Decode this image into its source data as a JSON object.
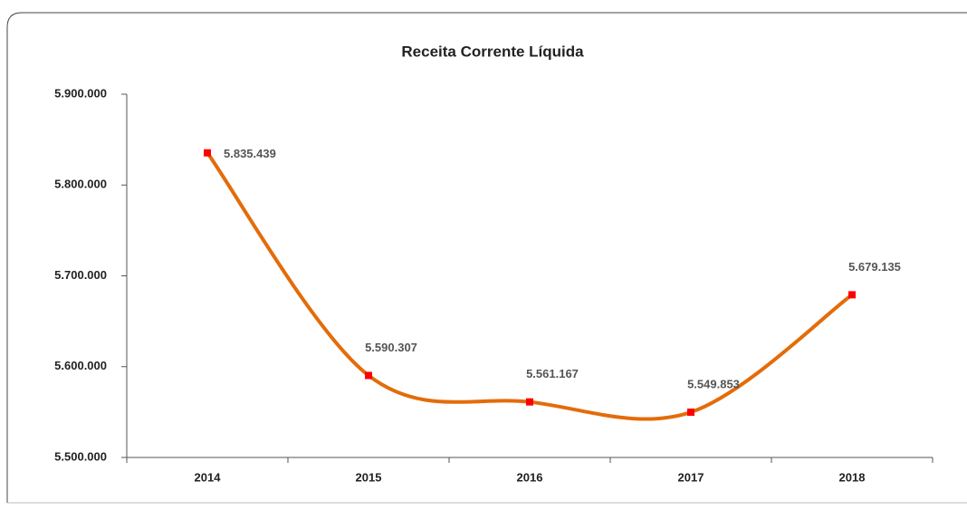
{
  "chart_data": {
    "type": "line",
    "title": "Receita Corrente Líquida",
    "categories": [
      "2014",
      "2015",
      "2016",
      "2017",
      "2018"
    ],
    "series": [
      {
        "name": "Receita Corrente Líquida",
        "color": "#e36c0a",
        "marker_color": "#ff0000",
        "values": [
          5835439,
          5590307,
          5561167,
          5549853,
          5679135
        ],
        "value_labels": [
          "5.835.439",
          "5.590.307",
          "5.561.167",
          "5.549.853",
          "5.679.135"
        ]
      }
    ],
    "ylim": [
      5500000,
      5900000
    ],
    "yticks": [
      {
        "value": 5500000,
        "label": "5.500.000"
      },
      {
        "value": 5600000,
        "label": "5.600.000"
      },
      {
        "value": 5700000,
        "label": "5.700.000"
      },
      {
        "value": 5800000,
        "label": "5.800.000"
      },
      {
        "value": 5900000,
        "label": "5.900.000"
      }
    ],
    "smooth": true
  }
}
